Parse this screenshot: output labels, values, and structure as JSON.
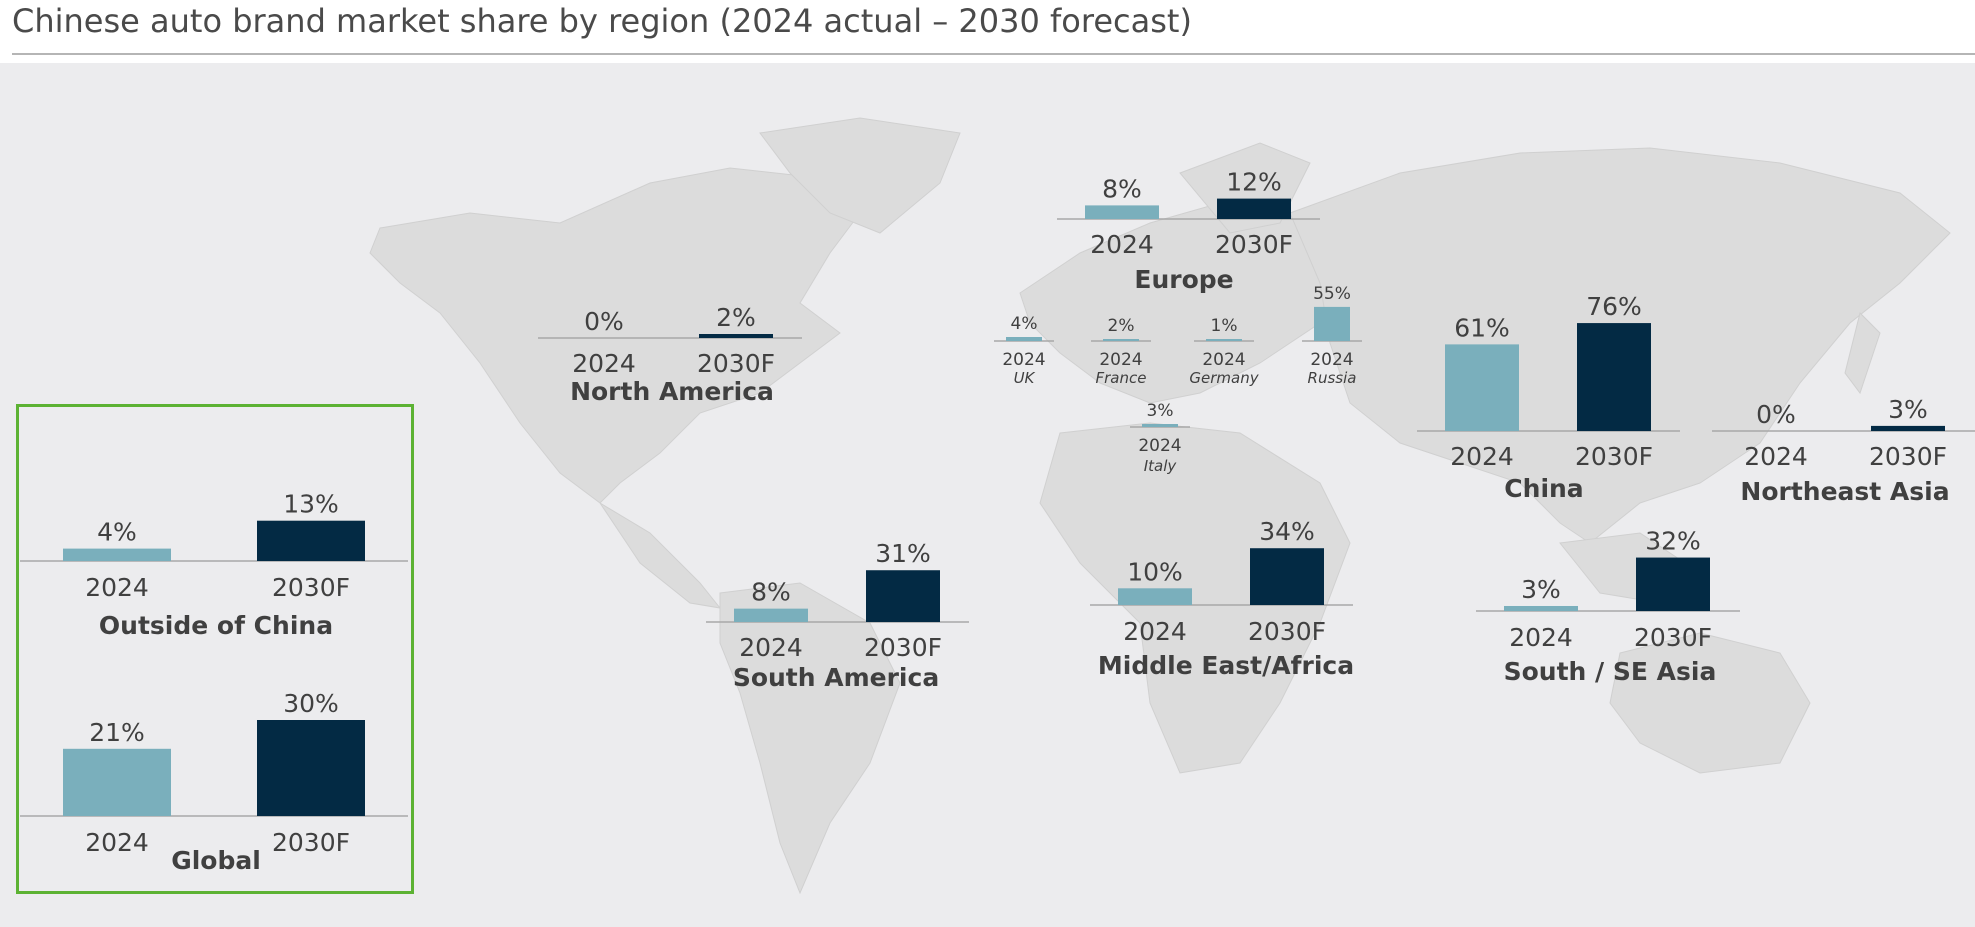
{
  "title": "Chinese auto brand market share by region (2024 actual – 2030 forecast)",
  "colors": {
    "actual": "#7aafbc",
    "forecast": "#032a44",
    "baseline": "#a8a8a8",
    "text": "#404040",
    "inset_border": "#5cb233",
    "land": "#dcdcdc",
    "ocean": "#ececee"
  },
  "chart_data": [
    {
      "type": "bar",
      "title": "Europe",
      "categories": [
        "2024",
        "2030F"
      ],
      "values": [
        8,
        12
      ],
      "labels": [
        "8%",
        "12%"
      ]
    },
    {
      "type": "bar",
      "title": "North America",
      "categories": [
        "2024",
        "2030F"
      ],
      "values": [
        0,
        2
      ],
      "labels": [
        "0%",
        "2%"
      ]
    },
    {
      "type": "bar",
      "title": "UK",
      "categories": [
        "2024"
      ],
      "values": [
        4
      ],
      "labels": [
        "4%"
      ]
    },
    {
      "type": "bar",
      "title": "France",
      "categories": [
        "2024"
      ],
      "values": [
        2
      ],
      "labels": [
        "2%"
      ]
    },
    {
      "type": "bar",
      "title": "Germany",
      "categories": [
        "2024"
      ],
      "values": [
        1
      ],
      "labels": [
        "1%"
      ]
    },
    {
      "type": "bar",
      "title": "Russia",
      "categories": [
        "2024"
      ],
      "values": [
        55
      ],
      "labels": [
        "55%"
      ]
    },
    {
      "type": "bar",
      "title": "Italy",
      "categories": [
        "2024"
      ],
      "values": [
        3
      ],
      "labels": [
        "3%"
      ]
    },
    {
      "type": "bar",
      "title": "China",
      "categories": [
        "2024",
        "2030F"
      ],
      "values": [
        61,
        76
      ],
      "labels": [
        "61%",
        "76%"
      ]
    },
    {
      "type": "bar",
      "title": "Northeast Asia",
      "categories": [
        "2024",
        "2030F"
      ],
      "values": [
        0,
        3
      ],
      "labels": [
        "0%",
        "3%"
      ]
    },
    {
      "type": "bar",
      "title": "South America",
      "categories": [
        "2024",
        "2030F"
      ],
      "values": [
        8,
        31
      ],
      "labels": [
        "8%",
        "31%"
      ]
    },
    {
      "type": "bar",
      "title": "Middle East/Africa",
      "categories": [
        "2024",
        "2030F"
      ],
      "values": [
        10,
        34
      ],
      "labels": [
        "10%",
        "34%"
      ]
    },
    {
      "type": "bar",
      "title": "South / SE Asia",
      "categories": [
        "2024",
        "2030F"
      ],
      "values": [
        3,
        32
      ],
      "labels": [
        "3%",
        "32%"
      ]
    },
    {
      "type": "bar",
      "title": "Outside of China",
      "categories": [
        "2024",
        "2030F"
      ],
      "values": [
        4,
        13
      ],
      "labels": [
        "4%",
        "13%"
      ]
    },
    {
      "type": "bar",
      "title": "Global",
      "categories": [
        "2024",
        "2030F"
      ],
      "values": [
        21,
        30
      ],
      "labels": [
        "21%",
        "30%"
      ]
    }
  ]
}
